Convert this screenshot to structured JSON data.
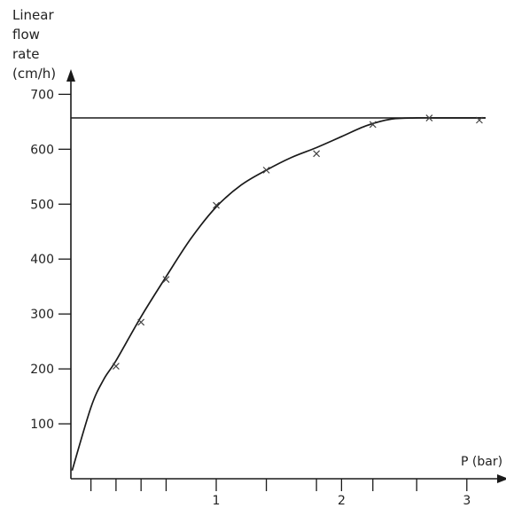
{
  "chart_data": {
    "type": "line",
    "ylabel_lines": [
      "Linear",
      "flow",
      "rate",
      "(cm/h)"
    ],
    "xlabel": "P (bar)",
    "xlim": [
      -0.16,
      3.15
    ],
    "ylim": [
      0,
      720
    ],
    "y_ticks": [
      100,
      200,
      300,
      400,
      500,
      600,
      700
    ],
    "x_ticks_labeled": [
      1,
      2,
      3
    ],
    "x_ticks_minor": [
      0.0,
      0.2,
      0.4,
      0.6,
      1.0,
      1.4,
      1.8,
      2.0,
      2.25,
      2.6,
      3.0
    ],
    "grid": false,
    "legend": "none",
    "series": [
      {
        "type": "scatter",
        "marker": "x",
        "x": [
          0.2,
          0.4,
          0.6,
          1.0,
          1.4,
          1.8,
          2.25,
          2.7,
          3.1
        ],
        "y": [
          205,
          285,
          363,
          498,
          562,
          592,
          645,
          657,
          653
        ]
      },
      {
        "type": "line",
        "style": "smooth",
        "x": [
          -0.15,
          0.0,
          0.1,
          0.2,
          0.4,
          0.6,
          0.8,
          1.0,
          1.2,
          1.4,
          1.6,
          1.8,
          2.0,
          2.2,
          2.4,
          2.6,
          2.8,
          3.0,
          3.15
        ],
        "y": [
          15,
          130,
          180,
          215,
          295,
          368,
          438,
          495,
          535,
          562,
          585,
          603,
          623,
          643,
          655,
          657,
          657,
          657,
          657
        ]
      },
      {
        "type": "hline",
        "y": 657,
        "x": [
          -0.16,
          3.15
        ]
      }
    ]
  }
}
